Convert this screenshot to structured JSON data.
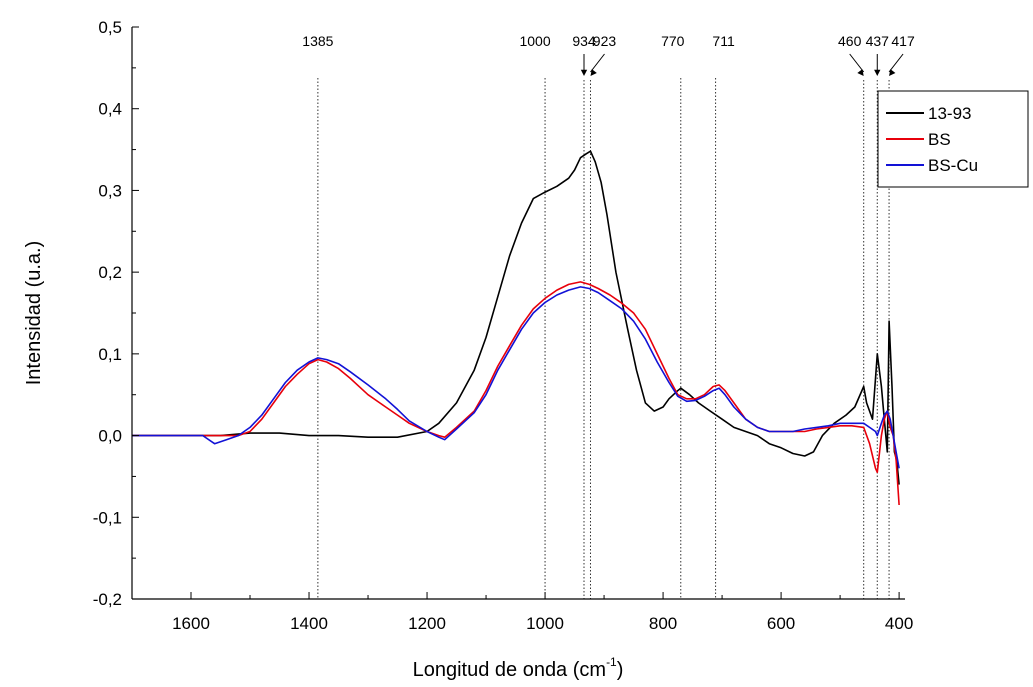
{
  "chart_data": {
    "type": "line",
    "xlabel": "Longitud de onda (cm",
    "xlabel_sup": "-1",
    "xlabel_close": ")",
    "ylabel": "Intensidad (u.a.)",
    "xlim": [
      1700,
      390
    ],
    "ylim": [
      -0.2,
      0.5
    ],
    "x_ticks": [
      1600,
      1400,
      1200,
      1000,
      800,
      600,
      400
    ],
    "x_tick_labels": [
      "1600",
      "1400",
      "1200",
      "1000",
      "800",
      "600",
      "400"
    ],
    "y_ticks": [
      -0.2,
      -0.1,
      0.0,
      0.1,
      0.2,
      0.3,
      0.4,
      0.5
    ],
    "y_tick_labels": [
      "-0,2",
      "-0,1",
      "0,0",
      "0,1",
      "0,2",
      "0,3",
      "0,4",
      "0,5"
    ],
    "grid": false,
    "legend_position": "top-right",
    "reference_lines": [
      {
        "x": 1385,
        "label": "1385",
        "arrow": false
      },
      {
        "x": 1000,
        "label": "1000",
        "arrow": false
      },
      {
        "x": 934,
        "label": "934",
        "arrow": true
      },
      {
        "x": 923,
        "label": "923",
        "arrow": true
      },
      {
        "x": 770,
        "label": "770",
        "arrow": false
      },
      {
        "x": 711,
        "label": "711",
        "arrow": false
      },
      {
        "x": 460,
        "label": "460",
        "arrow": true
      },
      {
        "x": 437,
        "label": "437",
        "arrow": true
      },
      {
        "x": 417,
        "label": "417",
        "arrow": true
      }
    ],
    "series": [
      {
        "name": "13-93",
        "color": "#000000",
        "points": [
          [
            1700,
            0.0
          ],
          [
            1650,
            0.0
          ],
          [
            1600,
            0.0
          ],
          [
            1550,
            0.0
          ],
          [
            1500,
            0.003
          ],
          [
            1450,
            0.003
          ],
          [
            1400,
            0.0
          ],
          [
            1350,
            0.0
          ],
          [
            1300,
            -0.002
          ],
          [
            1250,
            -0.002
          ],
          [
            1200,
            0.005
          ],
          [
            1180,
            0.015
          ],
          [
            1150,
            0.04
          ],
          [
            1120,
            0.08
          ],
          [
            1100,
            0.12
          ],
          [
            1080,
            0.17
          ],
          [
            1060,
            0.22
          ],
          [
            1040,
            0.26
          ],
          [
            1020,
            0.29
          ],
          [
            1000,
            0.298
          ],
          [
            980,
            0.305
          ],
          [
            960,
            0.315
          ],
          [
            950,
            0.325
          ],
          [
            940,
            0.34
          ],
          [
            930,
            0.345
          ],
          [
            923,
            0.348
          ],
          [
            915,
            0.335
          ],
          [
            905,
            0.31
          ],
          [
            895,
            0.27
          ],
          [
            880,
            0.2
          ],
          [
            860,
            0.13
          ],
          [
            845,
            0.08
          ],
          [
            830,
            0.04
          ],
          [
            815,
            0.03
          ],
          [
            800,
            0.035
          ],
          [
            790,
            0.045
          ],
          [
            775,
            0.055
          ],
          [
            770,
            0.058
          ],
          [
            755,
            0.05
          ],
          [
            740,
            0.04
          ],
          [
            720,
            0.03
          ],
          [
            700,
            0.02
          ],
          [
            680,
            0.01
          ],
          [
            660,
            0.005
          ],
          [
            640,
            0.0
          ],
          [
            620,
            -0.01
          ],
          [
            600,
            -0.015
          ],
          [
            580,
            -0.022
          ],
          [
            560,
            -0.025
          ],
          [
            545,
            -0.02
          ],
          [
            530,
            0.0
          ],
          [
            510,
            0.015
          ],
          [
            490,
            0.025
          ],
          [
            475,
            0.035
          ],
          [
            460,
            0.06
          ],
          [
            455,
            0.04
          ],
          [
            445,
            0.02
          ],
          [
            437,
            0.1
          ],
          [
            430,
            0.06
          ],
          [
            425,
            0.02
          ],
          [
            420,
            -0.02
          ],
          [
            417,
            0.14
          ],
          [
            412,
            0.06
          ],
          [
            408,
            -0.02
          ],
          [
            404,
            -0.03
          ],
          [
            400,
            -0.06
          ]
        ]
      },
      {
        "name": "BS",
        "color": "#e8000b",
        "points": [
          [
            1700,
            0.0
          ],
          [
            1650,
            0.0
          ],
          [
            1600,
            0.0
          ],
          [
            1550,
            0.0
          ],
          [
            1520,
            0.0
          ],
          [
            1500,
            0.005
          ],
          [
            1480,
            0.02
          ],
          [
            1460,
            0.04
          ],
          [
            1440,
            0.06
          ],
          [
            1420,
            0.075
          ],
          [
            1400,
            0.088
          ],
          [
            1385,
            0.093
          ],
          [
            1370,
            0.09
          ],
          [
            1350,
            0.082
          ],
          [
            1330,
            0.07
          ],
          [
            1300,
            0.05
          ],
          [
            1270,
            0.035
          ],
          [
            1250,
            0.025
          ],
          [
            1230,
            0.015
          ],
          [
            1200,
            0.005
          ],
          [
            1180,
            0.0
          ],
          [
            1170,
            -0.002
          ],
          [
            1150,
            0.01
          ],
          [
            1120,
            0.03
          ],
          [
            1100,
            0.055
          ],
          [
            1080,
            0.085
          ],
          [
            1060,
            0.11
          ],
          [
            1040,
            0.135
          ],
          [
            1020,
            0.155
          ],
          [
            1000,
            0.168
          ],
          [
            980,
            0.178
          ],
          [
            960,
            0.185
          ],
          [
            940,
            0.188
          ],
          [
            925,
            0.185
          ],
          [
            910,
            0.18
          ],
          [
            890,
            0.172
          ],
          [
            870,
            0.162
          ],
          [
            850,
            0.15
          ],
          [
            830,
            0.13
          ],
          [
            810,
            0.1
          ],
          [
            790,
            0.07
          ],
          [
            775,
            0.05
          ],
          [
            760,
            0.045
          ],
          [
            745,
            0.045
          ],
          [
            730,
            0.05
          ],
          [
            715,
            0.06
          ],
          [
            705,
            0.062
          ],
          [
            695,
            0.055
          ],
          [
            680,
            0.04
          ],
          [
            660,
            0.02
          ],
          [
            640,
            0.01
          ],
          [
            620,
            0.005
          ],
          [
            600,
            0.005
          ],
          [
            580,
            0.005
          ],
          [
            560,
            0.005
          ],
          [
            540,
            0.008
          ],
          [
            520,
            0.01
          ],
          [
            500,
            0.012
          ],
          [
            480,
            0.012
          ],
          [
            460,
            0.01
          ],
          [
            450,
            -0.01
          ],
          [
            440,
            -0.04
          ],
          [
            437,
            -0.045
          ],
          [
            430,
            0.0
          ],
          [
            425,
            0.02
          ],
          [
            420,
            0.03
          ],
          [
            415,
            0.01
          ],
          [
            410,
            0.0
          ],
          [
            405,
            -0.03
          ],
          [
            400,
            -0.085
          ]
        ]
      },
      {
        "name": "BS-Cu",
        "color": "#1212d6",
        "points": [
          [
            1700,
            0.0
          ],
          [
            1650,
            0.0
          ],
          [
            1600,
            0.0
          ],
          [
            1580,
            0.0
          ],
          [
            1560,
            -0.01
          ],
          [
            1540,
            -0.005
          ],
          [
            1520,
            0.0
          ],
          [
            1500,
            0.01
          ],
          [
            1480,
            0.025
          ],
          [
            1460,
            0.045
          ],
          [
            1440,
            0.065
          ],
          [
            1420,
            0.08
          ],
          [
            1400,
            0.09
          ],
          [
            1385,
            0.095
          ],
          [
            1370,
            0.093
          ],
          [
            1350,
            0.088
          ],
          [
            1330,
            0.078
          ],
          [
            1300,
            0.062
          ],
          [
            1270,
            0.045
          ],
          [
            1250,
            0.032
          ],
          [
            1230,
            0.018
          ],
          [
            1200,
            0.005
          ],
          [
            1180,
            -0.002
          ],
          [
            1170,
            -0.005
          ],
          [
            1150,
            0.008
          ],
          [
            1120,
            0.028
          ],
          [
            1100,
            0.05
          ],
          [
            1080,
            0.08
          ],
          [
            1060,
            0.105
          ],
          [
            1040,
            0.13
          ],
          [
            1020,
            0.15
          ],
          [
            1000,
            0.163
          ],
          [
            980,
            0.172
          ],
          [
            960,
            0.178
          ],
          [
            940,
            0.182
          ],
          [
            925,
            0.18
          ],
          [
            910,
            0.175
          ],
          [
            890,
            0.165
          ],
          [
            870,
            0.155
          ],
          [
            850,
            0.14
          ],
          [
            830,
            0.118
          ],
          [
            810,
            0.09
          ],
          [
            790,
            0.065
          ],
          [
            775,
            0.048
          ],
          [
            760,
            0.042
          ],
          [
            745,
            0.043
          ],
          [
            730,
            0.048
          ],
          [
            715,
            0.055
          ],
          [
            705,
            0.058
          ],
          [
            695,
            0.05
          ],
          [
            680,
            0.035
          ],
          [
            660,
            0.02
          ],
          [
            640,
            0.01
          ],
          [
            620,
            0.005
          ],
          [
            600,
            0.005
          ],
          [
            580,
            0.005
          ],
          [
            560,
            0.008
          ],
          [
            540,
            0.01
          ],
          [
            520,
            0.012
          ],
          [
            500,
            0.015
          ],
          [
            480,
            0.015
          ],
          [
            460,
            0.015
          ],
          [
            450,
            0.01
          ],
          [
            440,
            0.005
          ],
          [
            437,
            0.0
          ],
          [
            430,
            0.015
          ],
          [
            425,
            0.025
          ],
          [
            420,
            0.03
          ],
          [
            415,
            0.02
          ],
          [
            410,
            0.0
          ],
          [
            405,
            -0.02
          ],
          [
            400,
            -0.04
          ]
        ]
      }
    ]
  }
}
